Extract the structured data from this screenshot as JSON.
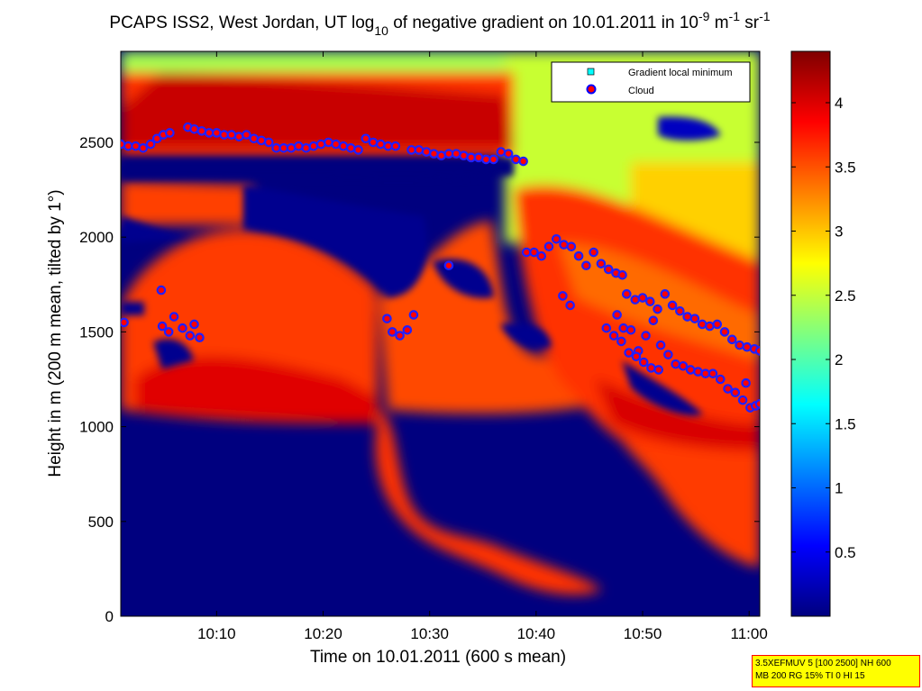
{
  "chart_data": {
    "type": "heatmap",
    "title": {
      "prefix": "PCAPS ISS2, West Jordan, UT log",
      "sub": "10",
      "middle": " of negative gradient on 10.01.2011 in 10",
      "sup1": "-9",
      "unit1": " m",
      "sup2": "-1",
      "unit2": " sr",
      "sup3": "-1"
    },
    "xlabel": "Time on 10.01.2011 (600 s mean)",
    "ylabel": "Height in m (200 m mean, tilted by 1°)",
    "x_ticks": [
      "10:10",
      "10:20",
      "10:30",
      "10:40",
      "10:50",
      "11:00"
    ],
    "x_tick_minutes": [
      10,
      20,
      30,
      40,
      50,
      60
    ],
    "xlim_minutes": [
      1,
      61
    ],
    "y_ticks": [
      0,
      500,
      1000,
      1500,
      2000,
      2500
    ],
    "ylim": [
      0,
      2980
    ],
    "colorbar": {
      "ticks": [
        "0.5",
        "1",
        "1.5",
        "2",
        "2.5",
        "3",
        "3.5",
        "4"
      ],
      "tick_values": [
        0.5,
        1,
        1.5,
        2,
        2.5,
        3,
        3.5,
        4
      ],
      "range": [
        0,
        4.4
      ]
    },
    "legend": {
      "placement": "top-right",
      "entries": [
        {
          "label": "Gradient local minimum",
          "marker": "square",
          "color": "#00ffff"
        },
        {
          "label": "Cloud",
          "marker": "circle",
          "color": "#ff0000"
        }
      ]
    },
    "series": [
      {
        "name": "Cloud",
        "points": [
          [
            1.0,
            2490
          ],
          [
            1.7,
            2480
          ],
          [
            2.4,
            2480
          ],
          [
            3.1,
            2470
          ],
          [
            3.8,
            2490
          ],
          [
            4.4,
            2520
          ],
          [
            5.0,
            2540
          ],
          [
            5.6,
            2550
          ],
          [
            7.3,
            2580
          ],
          [
            7.9,
            2570
          ],
          [
            8.6,
            2560
          ],
          [
            9.3,
            2550
          ],
          [
            10.0,
            2550
          ],
          [
            10.7,
            2540
          ],
          [
            11.4,
            2540
          ],
          [
            12.1,
            2530
          ],
          [
            12.8,
            2540
          ],
          [
            13.5,
            2520
          ],
          [
            14.2,
            2510
          ],
          [
            14.9,
            2500
          ],
          [
            15.6,
            2470
          ],
          [
            16.3,
            2470
          ],
          [
            17.0,
            2470
          ],
          [
            17.7,
            2480
          ],
          [
            18.4,
            2470
          ],
          [
            19.1,
            2480
          ],
          [
            19.8,
            2490
          ],
          [
            20.5,
            2500
          ],
          [
            21.2,
            2490
          ],
          [
            21.9,
            2480
          ],
          [
            22.6,
            2470
          ],
          [
            23.3,
            2460
          ],
          [
            24.0,
            2520
          ],
          [
            24.7,
            2500
          ],
          [
            25.4,
            2490
          ],
          [
            26.1,
            2480
          ],
          [
            26.8,
            2480
          ],
          [
            28.3,
            2460
          ],
          [
            29.0,
            2460
          ],
          [
            29.7,
            2450
          ],
          [
            30.4,
            2440
          ],
          [
            31.1,
            2430
          ],
          [
            31.8,
            2440
          ],
          [
            32.5,
            2440
          ],
          [
            33.2,
            2430
          ],
          [
            33.9,
            2420
          ],
          [
            34.6,
            2420
          ],
          [
            35.3,
            2410
          ],
          [
            36.0,
            2410
          ],
          [
            36.7,
            2450
          ],
          [
            37.4,
            2440
          ],
          [
            38.1,
            2410
          ],
          [
            38.8,
            2400
          ],
          [
            1.3,
            1550
          ],
          [
            4.8,
            1720
          ],
          [
            4.9,
            1530
          ],
          [
            5.5,
            1500
          ],
          [
            6.0,
            1580
          ],
          [
            6.8,
            1520
          ],
          [
            7.5,
            1480
          ],
          [
            7.9,
            1540
          ],
          [
            8.4,
            1470
          ],
          [
            26.0,
            1570
          ],
          [
            26.5,
            1500
          ],
          [
            27.2,
            1480
          ],
          [
            27.9,
            1510
          ],
          [
            28.5,
            1590
          ],
          [
            31.8,
            1850
          ],
          [
            39.1,
            1920
          ],
          [
            39.8,
            1920
          ],
          [
            40.5,
            1900
          ],
          [
            41.2,
            1950
          ],
          [
            41.9,
            1990
          ],
          [
            42.6,
            1960
          ],
          [
            43.3,
            1950
          ],
          [
            44.0,
            1900
          ],
          [
            44.7,
            1850
          ],
          [
            45.4,
            1920
          ],
          [
            46.1,
            1860
          ],
          [
            46.8,
            1830
          ],
          [
            47.5,
            1810
          ],
          [
            48.1,
            1800
          ],
          [
            48.5,
            1700
          ],
          [
            49.3,
            1670
          ],
          [
            50.0,
            1680
          ],
          [
            50.7,
            1660
          ],
          [
            51.4,
            1620
          ],
          [
            52.1,
            1700
          ],
          [
            52.8,
            1640
          ],
          [
            53.5,
            1610
          ],
          [
            54.2,
            1580
          ],
          [
            54.9,
            1570
          ],
          [
            55.6,
            1540
          ],
          [
            56.3,
            1530
          ],
          [
            57.0,
            1540
          ],
          [
            57.7,
            1500
          ],
          [
            58.4,
            1460
          ],
          [
            59.1,
            1430
          ],
          [
            59.8,
            1420
          ],
          [
            60.5,
            1410
          ],
          [
            61.0,
            1400
          ],
          [
            42.5,
            1690
          ],
          [
            43.2,
            1640
          ],
          [
            47.6,
            1590
          ],
          [
            48.2,
            1520
          ],
          [
            48.9,
            1510
          ],
          [
            49.6,
            1400
          ],
          [
            50.3,
            1480
          ],
          [
            51.0,
            1560
          ],
          [
            51.7,
            1430
          ],
          [
            52.4,
            1380
          ],
          [
            53.1,
            1330
          ],
          [
            53.8,
            1320
          ],
          [
            54.5,
            1300
          ],
          [
            55.2,
            1290
          ],
          [
            55.9,
            1280
          ],
          [
            56.6,
            1280
          ],
          [
            57.3,
            1250
          ],
          [
            58.0,
            1200
          ],
          [
            58.7,
            1180
          ],
          [
            59.4,
            1140
          ],
          [
            60.1,
            1100
          ],
          [
            60.6,
            1110
          ],
          [
            61.0,
            1120
          ],
          [
            46.6,
            1520
          ],
          [
            47.3,
            1480
          ],
          [
            48.0,
            1450
          ],
          [
            48.7,
            1390
          ],
          [
            49.4,
            1370
          ],
          [
            50.1,
            1340
          ],
          [
            50.8,
            1310
          ],
          [
            51.5,
            1300
          ],
          [
            59.7,
            1230
          ]
        ]
      }
    ]
  },
  "info_box": {
    "line1": "3.5XEFMUV 5 [100 2500] NH 600",
    "line2": "MB 200 RG 15% TI 0 HI 15"
  }
}
